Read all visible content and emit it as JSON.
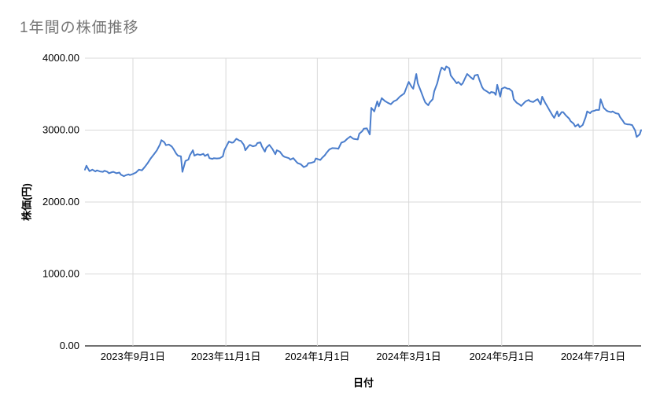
{
  "colors": {
    "series_line": "#4a7dcc",
    "gridline": "#d9d9d9",
    "axis_line": "#424242",
    "title_text": "#757575",
    "tick_text": "#000000",
    "background": "#ffffff"
  },
  "chart_data": {
    "type": "line",
    "title": "1年間の株価推移",
    "xlabel": "日付",
    "ylabel": "株価(円)",
    "grid": true,
    "legend": "none",
    "ylim": [
      0,
      4000
    ],
    "y_ticks": [
      {
        "value": 0,
        "label": "0.00"
      },
      {
        "value": 1000,
        "label": "1000.00"
      },
      {
        "value": 2000,
        "label": "2000.00"
      },
      {
        "value": 3000,
        "label": "3000.00"
      },
      {
        "value": 4000,
        "label": "4000.00"
      }
    ],
    "x_unit": "days-from-first-point",
    "x_range_days": [
      0,
      371
    ],
    "x_ticks": [
      {
        "day": 32,
        "label": "2023年9月1日"
      },
      {
        "day": 94,
        "label": "2023年11月1日"
      },
      {
        "day": 155,
        "label": "2024年1月1日"
      },
      {
        "day": 216,
        "label": "2024年3月1日"
      },
      {
        "day": 278,
        "label": "2024年5月1日"
      },
      {
        "day": 339,
        "label": "2024年7月1日"
      }
    ],
    "series": [
      {
        "name": "株価",
        "color": "#4a7dcc",
        "points": [
          [
            0,
            2450
          ],
          [
            1,
            2505
          ],
          [
            3,
            2430
          ],
          [
            5,
            2450
          ],
          [
            7,
            2425
          ],
          [
            8,
            2440
          ],
          [
            10,
            2425
          ],
          [
            12,
            2420
          ],
          [
            13,
            2435
          ],
          [
            15,
            2420
          ],
          [
            16,
            2400
          ],
          [
            18,
            2415
          ],
          [
            19,
            2420
          ],
          [
            21,
            2400
          ],
          [
            23,
            2410
          ],
          [
            24,
            2380
          ],
          [
            26,
            2360
          ],
          [
            27,
            2370
          ],
          [
            29,
            2385
          ],
          [
            30,
            2375
          ],
          [
            32,
            2390
          ],
          [
            34,
            2410
          ],
          [
            36,
            2450
          ],
          [
            38,
            2440
          ],
          [
            40,
            2490
          ],
          [
            42,
            2545
          ],
          [
            44,
            2610
          ],
          [
            46,
            2665
          ],
          [
            48,
            2720
          ],
          [
            50,
            2800
          ],
          [
            51,
            2860
          ],
          [
            53,
            2830
          ],
          [
            54,
            2790
          ],
          [
            56,
            2800
          ],
          [
            58,
            2770
          ],
          [
            59,
            2740
          ],
          [
            61,
            2670
          ],
          [
            62,
            2645
          ],
          [
            64,
            2635
          ],
          [
            65,
            2420
          ],
          [
            67,
            2570
          ],
          [
            69,
            2590
          ],
          [
            70,
            2650
          ],
          [
            72,
            2720
          ],
          [
            73,
            2645
          ],
          [
            75,
            2665
          ],
          [
            77,
            2655
          ],
          [
            79,
            2670
          ],
          [
            80,
            2640
          ],
          [
            82,
            2665
          ],
          [
            83,
            2610
          ],
          [
            85,
            2600
          ],
          [
            86,
            2610
          ],
          [
            88,
            2605
          ],
          [
            90,
            2610
          ],
          [
            92,
            2635
          ],
          [
            93,
            2720
          ],
          [
            95,
            2800
          ],
          [
            96,
            2840
          ],
          [
            98,
            2825
          ],
          [
            99,
            2830
          ],
          [
            101,
            2880
          ],
          [
            103,
            2855
          ],
          [
            104,
            2850
          ],
          [
            106,
            2795
          ],
          [
            107,
            2720
          ],
          [
            109,
            2775
          ],
          [
            110,
            2795
          ],
          [
            112,
            2775
          ],
          [
            114,
            2785
          ],
          [
            115,
            2820
          ],
          [
            117,
            2830
          ],
          [
            118,
            2775
          ],
          [
            120,
            2700
          ],
          [
            121,
            2755
          ],
          [
            123,
            2795
          ],
          [
            125,
            2740
          ],
          [
            127,
            2665
          ],
          [
            128,
            2720
          ],
          [
            130,
            2700
          ],
          [
            132,
            2645
          ],
          [
            133,
            2630
          ],
          [
            136,
            2610
          ],
          [
            137,
            2590
          ],
          [
            139,
            2610
          ],
          [
            141,
            2560
          ],
          [
            142,
            2540
          ],
          [
            144,
            2525
          ],
          [
            146,
            2485
          ],
          [
            148,
            2505
          ],
          [
            149,
            2540
          ],
          [
            151,
            2545
          ],
          [
            153,
            2560
          ],
          [
            154,
            2605
          ],
          [
            157,
            2585
          ],
          [
            158,
            2610
          ],
          [
            160,
            2650
          ],
          [
            161,
            2680
          ],
          [
            163,
            2730
          ],
          [
            165,
            2750
          ],
          [
            168,
            2745
          ],
          [
            169,
            2740
          ],
          [
            171,
            2825
          ],
          [
            173,
            2840
          ],
          [
            175,
            2880
          ],
          [
            177,
            2910
          ],
          [
            179,
            2880
          ],
          [
            180,
            2875
          ],
          [
            182,
            2870
          ],
          [
            183,
            2950
          ],
          [
            185,
            2985
          ],
          [
            186,
            3020
          ],
          [
            188,
            3025
          ],
          [
            190,
            2940
          ],
          [
            191,
            3310
          ],
          [
            193,
            3260
          ],
          [
            195,
            3400
          ],
          [
            196,
            3330
          ],
          [
            198,
            3445
          ],
          [
            200,
            3405
          ],
          [
            202,
            3380
          ],
          [
            204,
            3360
          ],
          [
            206,
            3400
          ],
          [
            208,
            3420
          ],
          [
            210,
            3465
          ],
          [
            213,
            3510
          ],
          [
            215,
            3620
          ],
          [
            216,
            3670
          ],
          [
            218,
            3600
          ],
          [
            219,
            3575
          ],
          [
            221,
            3780
          ],
          [
            222,
            3650
          ],
          [
            224,
            3545
          ],
          [
            226,
            3435
          ],
          [
            227,
            3385
          ],
          [
            229,
            3345
          ],
          [
            230,
            3385
          ],
          [
            232,
            3430
          ],
          [
            233,
            3540
          ],
          [
            235,
            3650
          ],
          [
            237,
            3815
          ],
          [
            238,
            3870
          ],
          [
            240,
            3835
          ],
          [
            241,
            3885
          ],
          [
            243,
            3860
          ],
          [
            244,
            3760
          ],
          [
            246,
            3705
          ],
          [
            248,
            3650
          ],
          [
            249,
            3670
          ],
          [
            251,
            3630
          ],
          [
            252,
            3650
          ],
          [
            254,
            3740
          ],
          [
            255,
            3780
          ],
          [
            257,
            3740
          ],
          [
            259,
            3705
          ],
          [
            260,
            3760
          ],
          [
            262,
            3770
          ],
          [
            263,
            3705
          ],
          [
            265,
            3595
          ],
          [
            266,
            3565
          ],
          [
            268,
            3540
          ],
          [
            270,
            3510
          ],
          [
            271,
            3530
          ],
          [
            273,
            3520
          ],
          [
            274,
            3490
          ],
          [
            275,
            3630
          ],
          [
            277,
            3465
          ],
          [
            278,
            3575
          ],
          [
            280,
            3595
          ],
          [
            282,
            3575
          ],
          [
            283,
            3575
          ],
          [
            285,
            3540
          ],
          [
            286,
            3430
          ],
          [
            288,
            3380
          ],
          [
            290,
            3355
          ],
          [
            291,
            3335
          ],
          [
            293,
            3380
          ],
          [
            294,
            3400
          ],
          [
            296,
            3420
          ],
          [
            297,
            3400
          ],
          [
            299,
            3390
          ],
          [
            301,
            3420
          ],
          [
            302,
            3430
          ],
          [
            304,
            3355
          ],
          [
            305,
            3465
          ],
          [
            307,
            3380
          ],
          [
            308,
            3345
          ],
          [
            310,
            3270
          ],
          [
            312,
            3200
          ],
          [
            313,
            3170
          ],
          [
            315,
            3260
          ],
          [
            316,
            3190
          ],
          [
            318,
            3250
          ],
          [
            319,
            3250
          ],
          [
            321,
            3200
          ],
          [
            323,
            3160
          ],
          [
            324,
            3125
          ],
          [
            326,
            3090
          ],
          [
            327,
            3050
          ],
          [
            329,
            3080
          ],
          [
            330,
            3040
          ],
          [
            332,
            3070
          ],
          [
            334,
            3180
          ],
          [
            335,
            3260
          ],
          [
            337,
            3235
          ],
          [
            338,
            3260
          ],
          [
            340,
            3270
          ],
          [
            341,
            3280
          ],
          [
            343,
            3280
          ],
          [
            344,
            3430
          ],
          [
            346,
            3310
          ],
          [
            348,
            3270
          ],
          [
            349,
            3260
          ],
          [
            351,
            3250
          ],
          [
            352,
            3260
          ],
          [
            354,
            3235
          ],
          [
            356,
            3225
          ],
          [
            357,
            3180
          ],
          [
            359,
            3125
          ],
          [
            360,
            3090
          ],
          [
            362,
            3080
          ],
          [
            363,
            3080
          ],
          [
            365,
            3070
          ],
          [
            367,
            2995
          ],
          [
            368,
            2905
          ],
          [
            370,
            2940
          ],
          [
            371,
            3000
          ]
        ]
      }
    ]
  }
}
